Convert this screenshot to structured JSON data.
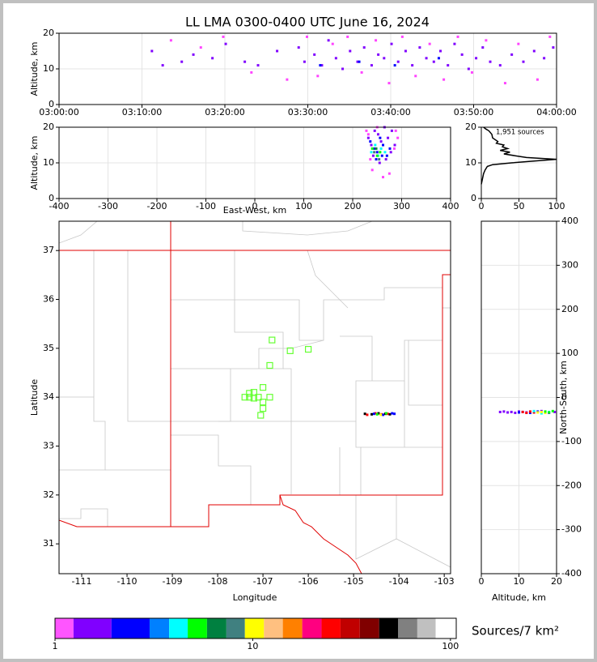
{
  "chart_data": [
    {
      "type": "scatter",
      "title": "LL LMA 0300-0400 UTC June 16, 2024",
      "ylabel": "Altitude, km",
      "xlim": [
        0,
        60
      ],
      "ylim": [
        0,
        20
      ],
      "grid": true,
      "xticks": [
        {
          "value": 0,
          "label": "03:00:00"
        },
        {
          "value": 10,
          "label": "03:10:00"
        },
        {
          "value": 20,
          "label": "03:20:00"
        },
        {
          "value": 30,
          "label": "03:30:00"
        },
        {
          "value": 40,
          "label": "03:40:00"
        },
        {
          "value": 50,
          "label": "03:50:00"
        },
        {
          "value": 60,
          "label": "04:00:00"
        }
      ],
      "yticks": [
        0,
        10,
        20
      ],
      "series": [
        {
          "color": "#8000ff",
          "x": [
            11.2,
            12.5,
            14.8,
            16.2,
            18.5,
            20.1,
            22.4,
            24.0,
            26.3,
            28.9,
            29.6,
            30.8,
            31.7,
            32.5,
            33.4,
            34.2,
            35.1,
            36.0,
            36.8,
            37.7,
            38.5,
            39.2,
            40.1,
            40.9,
            41.8,
            42.6,
            43.5,
            44.3,
            45.2,
            46.0,
            46.9,
            47.7,
            48.6,
            49.4,
            50.3,
            51.1,
            52.0,
            53.2,
            54.6,
            56.0,
            57.3,
            58.5,
            59.6
          ],
          "y": [
            15,
            11,
            12,
            14,
            13,
            17,
            12,
            11,
            15,
            16,
            12,
            14,
            11,
            18,
            13,
            10,
            15,
            12,
            16,
            11,
            14,
            13,
            17,
            12,
            15,
            11,
            16,
            13,
            12,
            15,
            11,
            17,
            14,
            10,
            13,
            16,
            12,
            11,
            14,
            12,
            15,
            13,
            16
          ]
        },
        {
          "color": "#ff44ff",
          "x": [
            13.5,
            17.1,
            19.8,
            23.2,
            27.5,
            29.9,
            31.2,
            33.0,
            34.8,
            36.5,
            38.2,
            39.8,
            41.4,
            43.0,
            44.7,
            46.4,
            48.1,
            49.8,
            51.5,
            53.8,
            55.4,
            57.7,
            59.2
          ],
          "y": [
            18,
            16,
            19,
            9,
            7,
            19,
            8,
            17,
            19,
            9,
            18,
            6,
            19,
            8,
            17,
            7,
            19,
            9,
            18,
            6,
            17,
            7,
            19
          ]
        },
        {
          "color": "#0000ff",
          "x": [
            31.5,
            36.2,
            40.5,
            45.8
          ],
          "y": [
            11,
            12,
            11,
            13
          ]
        }
      ]
    },
    {
      "type": "scatter",
      "ylabel": "Altitude, km",
      "xlabel": "East-West, km",
      "xlim": [
        -400,
        400
      ],
      "ylim": [
        0,
        20
      ],
      "grid": true,
      "xticks": [
        -400,
        -300,
        -200,
        -100,
        0,
        100,
        200,
        300,
        400
      ],
      "yticks": [
        0,
        10,
        20
      ],
      "series": [
        {
          "color": "#ff44ff",
          "x": [
            228,
            232,
            288,
            292,
            285,
            240,
            262,
            275,
            250,
            236
          ],
          "y": [
            19,
            18,
            19,
            17,
            14,
            8,
            6,
            7,
            20,
            11
          ]
        },
        {
          "color": "#8000ff",
          "x": [
            232,
            238,
            245,
            252,
            258,
            265,
            272,
            280,
            286,
            242,
            255,
            268,
            278
          ],
          "y": [
            17,
            15,
            19,
            18,
            16,
            20,
            17,
            19,
            15,
            12,
            10,
            11,
            13
          ]
        },
        {
          "color": "#0000ff",
          "x": [
            236,
            244,
            250,
            256,
            262,
            270,
            276,
            248,
            260
          ],
          "y": [
            16,
            14,
            13,
            17,
            15,
            12,
            14,
            11,
            12
          ]
        },
        {
          "color": "#00ffff",
          "x": [
            238,
            246,
            252,
            258,
            266
          ],
          "y": [
            13,
            15,
            12,
            14,
            13
          ]
        },
        {
          "color": "#00ff00",
          "x": [
            240,
            250,
            256
          ],
          "y": [
            14,
            12,
            13
          ]
        },
        {
          "color": "#408080",
          "x": [
            244,
            254
          ],
          "y": [
            13,
            11
          ]
        },
        {
          "color": "#008040",
          "x": [
            248
          ],
          "y": [
            14
          ]
        }
      ]
    },
    {
      "type": "line",
      "annotation": "1,951 sources",
      "xlim": [
        0,
        100
      ],
      "ylim": [
        0,
        20
      ],
      "grid": true,
      "xticks": [
        0,
        50,
        100
      ],
      "yticks": [
        0,
        10,
        20
      ],
      "series": [
        {
          "color": "#000000",
          "x": [
            0,
            1,
            2,
            3,
            5,
            8,
            15,
            40,
            70,
            100,
            60,
            45,
            30,
            38,
            25,
            35,
            28,
            30,
            20,
            22,
            15,
            14,
            10,
            6,
            3
          ],
          "y": [
            4,
            5,
            6,
            7,
            8,
            9,
            9.5,
            10,
            10.5,
            11,
            11.5,
            12,
            12.5,
            13,
            13.5,
            14,
            14.5,
            15,
            15.5,
            16,
            17,
            18,
            19,
            19.5,
            20
          ]
        }
      ]
    },
    {
      "type": "scatter",
      "xlabel": "Longitude",
      "ylabel": "Latitude",
      "xlim": [
        -111.5,
        -102.86
      ],
      "ylim": [
        30.39,
        37.6
      ],
      "grid": false,
      "xticks": [
        -111,
        -110,
        -109,
        -108,
        -107,
        -106,
        -105,
        -104,
        -103
      ],
      "yticks": [
        31,
        32,
        33,
        34,
        35,
        36,
        37
      ],
      "series": [
        {
          "color": "#66ff33",
          "marker": "square",
          "x": [
            -106.8,
            -106.4,
            -106.0,
            -106.85,
            -107.0,
            -107.2,
            -107.3,
            -107.4,
            -107.1,
            -106.85,
            -107.0,
            -107.0,
            -107.05,
            -107.3,
            -107.2
          ],
          "y": [
            35.17,
            34.95,
            34.98,
            34.65,
            34.2,
            34.1,
            34.0,
            34.0,
            34.0,
            34.0,
            33.9,
            33.77,
            33.63,
            34.08,
            33.98
          ]
        },
        {
          "color": "#000000",
          "x": [
            -104.75,
            -104.6,
            -104.45,
            -104.3,
            -104.2
          ],
          "y": [
            33.66,
            33.65,
            33.67,
            33.66,
            33.65
          ]
        },
        {
          "color": "#ff0000",
          "x": [
            -104.7,
            -104.52,
            -104.38,
            -104.25
          ],
          "y": [
            33.64,
            33.67,
            33.65,
            33.66
          ]
        },
        {
          "color": "#0000ff",
          "x": [
            -104.55,
            -104.35,
            -104.15,
            -104.1
          ],
          "y": [
            33.66,
            33.64,
            33.67,
            33.66
          ]
        },
        {
          "color": "#00ff00",
          "x": [
            -104.48,
            -104.28
          ],
          "y": [
            33.65,
            33.67
          ]
        },
        {
          "color": "#ffff00",
          "x": [
            -104.4
          ],
          "y": [
            33.64
          ]
        }
      ]
    },
    {
      "type": "scatter",
      "xlabel": "Altitude, km",
      "ylabel": "North-South, km",
      "y_axis_side": "right",
      "xlim": [
        0,
        20
      ],
      "ylim": [
        -400,
        400
      ],
      "grid": true,
      "xticks": [
        0,
        10,
        20
      ],
      "yticks": [
        -400,
        -300,
        -200,
        -100,
        0,
        100,
        200,
        300,
        400
      ],
      "series": [
        {
          "color": "#8000ff",
          "x": [
            5,
            6,
            7,
            8,
            9,
            10,
            12,
            14,
            16,
            18,
            19.5
          ],
          "y": [
            -33,
            -32,
            -34,
            -33,
            -35,
            -32,
            -34,
            -33,
            -31,
            -35,
            -33
          ]
        },
        {
          "color": "#0000ff",
          "x": [
            10,
            11,
            13,
            15,
            17
          ],
          "y": [
            -34,
            -33,
            -35,
            -32,
            -34
          ]
        },
        {
          "color": "#ff0000",
          "x": [
            11,
            12,
            13,
            14
          ],
          "y": [
            -33,
            -35,
            -32,
            -34
          ]
        },
        {
          "color": "#00ffff",
          "x": [
            14,
            16,
            18
          ],
          "y": [
            -31,
            -36,
            -33
          ]
        },
        {
          "color": "#ffff00",
          "x": [
            15,
            16,
            17
          ],
          "y": [
            -34,
            -33,
            -35
          ]
        },
        {
          "color": "#00ff00",
          "x": [
            17,
            18,
            19
          ],
          "y": [
            -32,
            -34,
            -31
          ]
        }
      ]
    },
    {
      "type": "colorbar",
      "label": "Sources/7 km²",
      "log": true,
      "xlim": [
        1,
        107
      ],
      "xticks": [
        1,
        10,
        100
      ],
      "bins": [
        1,
        1.24,
        1.93,
        3.01,
        3.78,
        4.69,
        5.87,
        7.36,
        9.13,
        11.4,
        14.2,
        17.8,
        22.3,
        27.8,
        34.8,
        43.6,
        54.3,
        68,
        84.2,
        107
      ],
      "colors": [
        "#ff55ff",
        "#8000ff",
        "#0000ff",
        "#0080ff",
        "#00ffff",
        "#00ff00",
        "#008040",
        "#408080",
        "#ffff00",
        "#ffc080",
        "#ff8000",
        "#ff0080",
        "#ff0000",
        "#c00000",
        "#800000",
        "#000000",
        "#808080",
        "#c0c0c0",
        "#ffffff"
      ]
    }
  ]
}
